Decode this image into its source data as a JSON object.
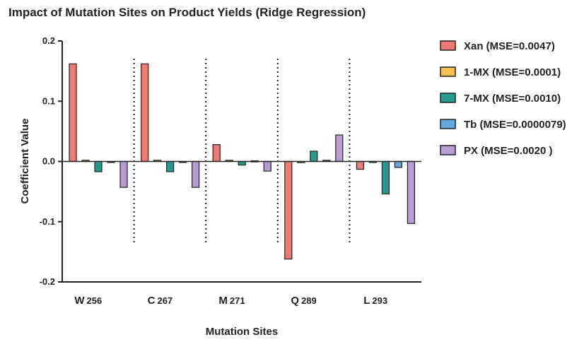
{
  "chart_data": {
    "type": "bar",
    "title": "Impact of Mutation Sites on Product Yields (Ridge Regression)",
    "xlabel": "Mutation Sites",
    "ylabel": "Coefficient Value",
    "ylim": [
      -0.2,
      0.2
    ],
    "yticks": [
      "0.2",
      "0.1",
      "0.0",
      "-0.1",
      "-0.2"
    ],
    "categories": [
      {
        "main": "W",
        "sub": "256"
      },
      {
        "main": "C",
        "sub": "267"
      },
      {
        "main": "M",
        "sub": "271"
      },
      {
        "main": "Q",
        "sub": "289"
      },
      {
        "main": "L",
        "sub": "293"
      }
    ],
    "series": [
      {
        "name": "Xan (MSE=0.0047)",
        "color": "#ee7b73",
        "values": [
          0.162,
          0.162,
          0.028,
          -0.162,
          -0.013
        ]
      },
      {
        "name": "1-MX (MSE=0.0001)",
        "color": "#f2c24f",
        "values": [
          0.002,
          0.002,
          0.002,
          -0.002,
          -0.001
        ]
      },
      {
        "name": "7-MX (MSE=0.0010)",
        "color": "#259c8b",
        "values": [
          -0.017,
          -0.017,
          -0.006,
          0.017,
          -0.054
        ]
      },
      {
        "name": "Tb (MSE=0.0000079)",
        "color": "#62a9e0",
        "values": [
          -0.001,
          -0.001,
          0.001,
          0.002,
          -0.01
        ]
      },
      {
        "name": "PX (MSE=0.0020 )",
        "color": "#b79bd4",
        "values": [
          -0.043,
          -0.043,
          -0.016,
          0.044,
          -0.103
        ]
      }
    ],
    "legend_position": "right",
    "grid": false
  }
}
